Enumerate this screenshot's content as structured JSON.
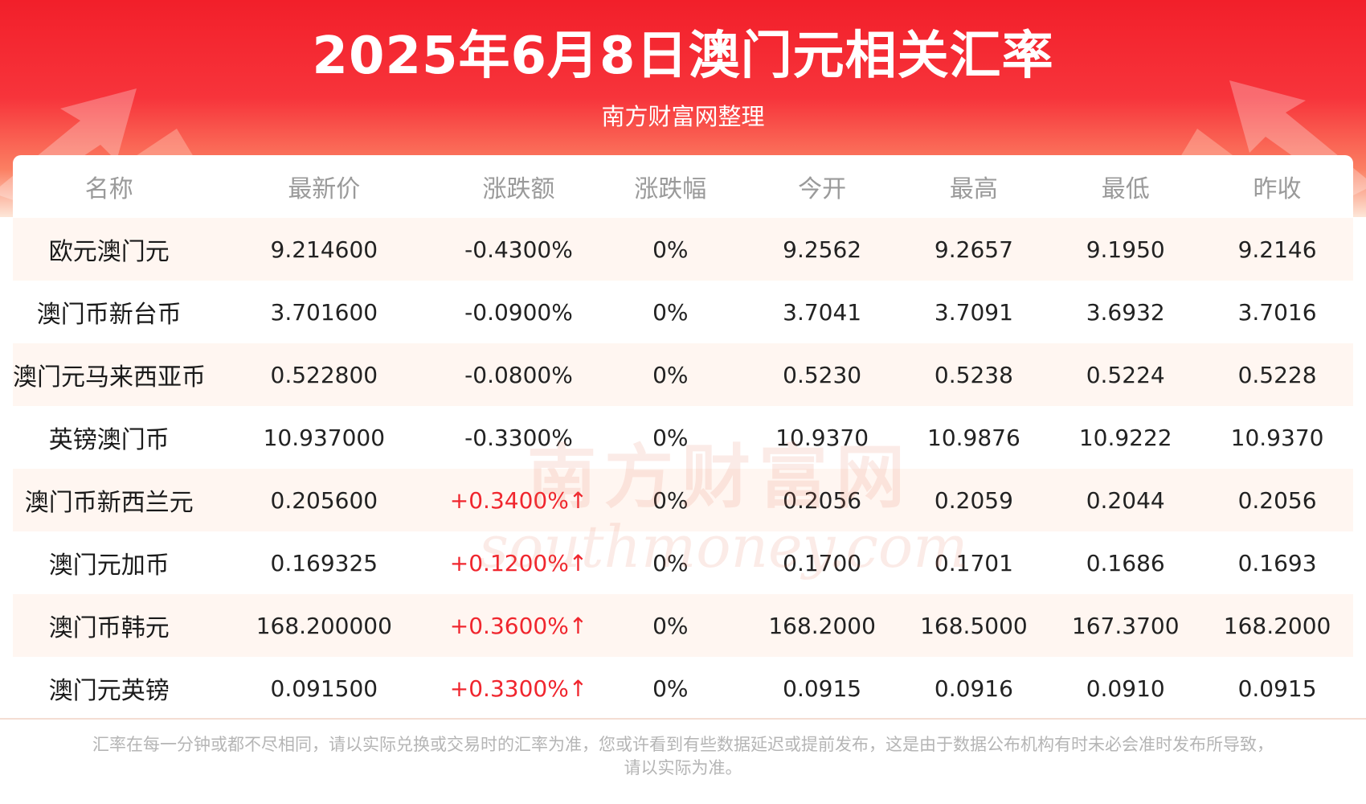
{
  "title": "2025年6月8日澳门元相关汇率",
  "subtitle": "南方财富网整理",
  "columns": [
    "名称",
    "最新价",
    "涨跌额",
    "涨跌幅",
    "今开",
    "最高",
    "最低",
    "昨收"
  ],
  "rows": [
    {
      "name": "欧元澳门元",
      "latest": "9.214600",
      "change": "-0.4300%",
      "pct": "0%",
      "open": "9.2562",
      "high": "9.2657",
      "low": "9.1950",
      "prev": "9.2146"
    },
    {
      "name": "澳门币新台币",
      "latest": "3.701600",
      "change": "-0.0900%",
      "pct": "0%",
      "open": "3.7041",
      "high": "3.7091",
      "low": "3.6932",
      "prev": "3.7016"
    },
    {
      "name": "澳门元马来西亚币",
      "latest": "0.522800",
      "change": "-0.0800%",
      "pct": "0%",
      "open": "0.5230",
      "high": "0.5238",
      "low": "0.5224",
      "prev": "0.5228"
    },
    {
      "name": "英镑澳门币",
      "latest": "10.937000",
      "change": "-0.3300%",
      "pct": "0%",
      "open": "10.9370",
      "high": "10.9876",
      "low": "10.9222",
      "prev": "10.9370"
    },
    {
      "name": "澳门币新西兰元",
      "latest": "0.205600",
      "change": "+0.3400%↑",
      "pct": "0%",
      "open": "0.2056",
      "high": "0.2059",
      "low": "0.2044",
      "prev": "0.2056"
    },
    {
      "name": "澳门元加币",
      "latest": "0.169325",
      "change": "+0.1200%↑",
      "pct": "0%",
      "open": "0.1700",
      "high": "0.1701",
      "low": "0.1686",
      "prev": "0.1693"
    },
    {
      "name": "澳门币韩元",
      "latest": "168.200000",
      "change": "+0.3600%↑",
      "pct": "0%",
      "open": "168.2000",
      "high": "168.5000",
      "low": "167.3700",
      "prev": "168.2000"
    },
    {
      "name": "澳门元英镑",
      "latest": "0.091500",
      "change": "+0.3300%↑",
      "pct": "0%",
      "open": "0.0915",
      "high": "0.0916",
      "low": "0.0910",
      "prev": "0.0915"
    }
  ],
  "watermark": {
    "cn": "南方财富网",
    "en": "southmoney.com"
  },
  "footer": {
    "line1": "汇率在每一分钟或都不尽相同，请以实际兑换或交易时的汇率为准，您或许看到有些数据延迟或提前发布，这是由于数据公布机构有时未必会准时发布所导致，",
    "line2": "请以实际为准。"
  },
  "colors": {
    "header_red": "#f21f2a",
    "up_red": "#f0262e",
    "row_tint": "#fff5f0",
    "header_text": "#9a9a9a"
  }
}
